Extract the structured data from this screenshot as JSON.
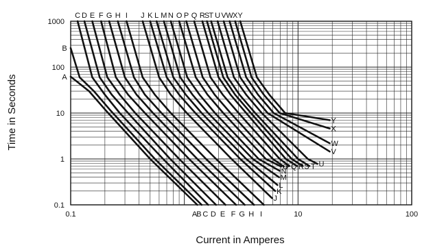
{
  "chart_data": {
    "type": "line",
    "xlabel": "Current in Amperes",
    "ylabel": "Time in Seconds",
    "xscale": "log",
    "yscale": "log",
    "xlim": [
      0.1,
      100
    ],
    "ylim": [
      0.1,
      1000
    ],
    "grid": true,
    "x_ticks": [
      {
        "value": 0.1,
        "label": "0.1"
      },
      {
        "value": 10,
        "label": "10"
      },
      {
        "value": 100,
        "label": "100"
      }
    ],
    "y_ticks": [
      {
        "value": 0.1,
        "label": "0.1"
      },
      {
        "value": 1,
        "label": "1"
      },
      {
        "value": 10,
        "label": "10"
      },
      {
        "value": 100,
        "label": "100"
      },
      {
        "value": 1000,
        "label": "1000"
      }
    ],
    "series": [
      {
        "name": "A",
        "points": [
          [
            0.1,
            62
          ],
          [
            0.145,
            30
          ],
          [
            0.2,
            12
          ],
          [
            0.5,
            1.0
          ],
          [
            1.3,
            0.1
          ]
        ]
      },
      {
        "name": "B",
        "points": [
          [
            0.1,
            260
          ],
          [
            0.12,
            60
          ],
          [
            0.16,
            30
          ],
          [
            0.22,
            12
          ],
          [
            0.55,
            1.0
          ],
          [
            1.42,
            0.1
          ]
        ]
      },
      {
        "name": "C",
        "points": [
          [
            0.115,
            1000
          ],
          [
            0.155,
            60
          ],
          [
            0.2,
            25
          ],
          [
            0.27,
            10
          ],
          [
            0.65,
            1.0
          ],
          [
            1.62,
            0.1
          ]
        ]
      },
      {
        "name": "D",
        "points": [
          [
            0.132,
            1000
          ],
          [
            0.18,
            60
          ],
          [
            0.23,
            25
          ],
          [
            0.32,
            10
          ],
          [
            0.75,
            1.0
          ],
          [
            1.9,
            0.1
          ]
        ]
      },
      {
        "name": "E",
        "points": [
          [
            0.155,
            1000
          ],
          [
            0.21,
            60
          ],
          [
            0.27,
            25
          ],
          [
            0.37,
            10
          ],
          [
            0.9,
            1.0
          ],
          [
            2.3,
            0.1
          ]
        ]
      },
      {
        "name": "F",
        "points": [
          [
            0.185,
            1000
          ],
          [
            0.25,
            60
          ],
          [
            0.32,
            25
          ],
          [
            0.45,
            10
          ],
          [
            1.1,
            1.0
          ],
          [
            2.85,
            0.1
          ]
        ]
      },
      {
        "name": "G",
        "points": [
          [
            0.218,
            1000
          ],
          [
            0.3,
            60
          ],
          [
            0.38,
            25
          ],
          [
            0.53,
            10
          ],
          [
            1.3,
            1.0
          ],
          [
            3.4,
            0.1
          ]
        ]
      },
      {
        "name": "H",
        "points": [
          [
            0.26,
            1000
          ],
          [
            0.36,
            60
          ],
          [
            0.45,
            25
          ],
          [
            0.63,
            10
          ],
          [
            1.55,
            1.0
          ],
          [
            4.1,
            0.1
          ]
        ]
      },
      {
        "name": "I",
        "points": [
          [
            0.31,
            1000
          ],
          [
            0.43,
            60
          ],
          [
            0.55,
            25
          ],
          [
            0.76,
            10
          ],
          [
            1.9,
            1.0
          ],
          [
            5.0,
            0.1
          ]
        ]
      },
      {
        "name": "J",
        "points": [
          [
            0.43,
            1000
          ],
          [
            0.6,
            60
          ],
          [
            0.76,
            25
          ],
          [
            1.05,
            10
          ],
          [
            2.6,
            1.0
          ],
          [
            5.9,
            0.14
          ]
        ]
      },
      {
        "name": "K",
        "points": [
          [
            0.5,
            1000
          ],
          [
            0.7,
            60
          ],
          [
            0.9,
            25
          ],
          [
            1.25,
            10
          ],
          [
            3.1,
            1.0
          ],
          [
            6.3,
            0.2
          ]
        ]
      },
      {
        "name": "L",
        "points": [
          [
            0.57,
            1000
          ],
          [
            0.8,
            60
          ],
          [
            1.03,
            25
          ],
          [
            1.42,
            10
          ],
          [
            3.5,
            1.0
          ],
          [
            6.6,
            0.27
          ]
        ]
      },
      {
        "name": "M",
        "points": [
          [
            0.66,
            1000
          ],
          [
            0.92,
            60
          ],
          [
            1.18,
            25
          ],
          [
            1.62,
            10
          ],
          [
            4.0,
            1.0
          ],
          [
            6.8,
            0.4
          ]
        ]
      },
      {
        "name": "N",
        "points": [
          [
            0.76,
            1000
          ],
          [
            1.06,
            60
          ],
          [
            1.36,
            25
          ],
          [
            1.86,
            10
          ],
          [
            4.5,
            1.0
          ],
          [
            6.9,
            0.55
          ]
        ]
      },
      {
        "name": "O",
        "points": [
          [
            0.9,
            1000
          ],
          [
            1.26,
            60
          ],
          [
            1.6,
            25
          ],
          [
            2.2,
            10
          ],
          [
            5.2,
            1.0
          ],
          [
            7.1,
            0.68
          ]
        ]
      },
      {
        "name": "P",
        "points": [
          [
            1.04,
            1000
          ],
          [
            1.45,
            60
          ],
          [
            1.85,
            25
          ],
          [
            2.55,
            10
          ],
          [
            6.0,
            1.0
          ],
          [
            7.5,
            0.68
          ]
        ]
      },
      {
        "name": "Q",
        "points": [
          [
            1.22,
            1000
          ],
          [
            1.7,
            60
          ],
          [
            2.18,
            25
          ],
          [
            3.0,
            10
          ],
          [
            6.9,
            1.0
          ],
          [
            8.4,
            0.7
          ]
        ]
      },
      {
        "name": "R",
        "points": [
          [
            1.44,
            1000
          ],
          [
            2.0,
            60
          ],
          [
            2.55,
            25
          ],
          [
            3.5,
            10
          ],
          [
            7.8,
            1.0
          ],
          [
            9.8,
            0.7
          ]
        ]
      },
      {
        "name": "S",
        "points": [
          [
            1.58,
            1000
          ],
          [
            2.2,
            60
          ],
          [
            2.8,
            25
          ],
          [
            3.85,
            10
          ],
          [
            8.8,
            1.0
          ],
          [
            11.0,
            0.7
          ]
        ]
      },
      {
        "name": "T",
        "points": [
          [
            1.72,
            1000
          ],
          [
            2.4,
            60
          ],
          [
            3.06,
            25
          ],
          [
            4.2,
            10
          ],
          [
            10.0,
            1.0
          ],
          [
            12.6,
            0.7
          ]
        ]
      },
      {
        "name": "U",
        "points": [
          [
            1.96,
            1000
          ],
          [
            2.73,
            60
          ],
          [
            3.5,
            25
          ],
          [
            4.8,
            10
          ],
          [
            12.2,
            1.0
          ],
          [
            14.8,
            0.78
          ]
        ]
      },
      {
        "name": "V",
        "points": [
          [
            2.22,
            1000
          ],
          [
            3.1,
            60
          ],
          [
            3.95,
            25
          ],
          [
            5.4,
            10
          ],
          [
            19.0,
            1.45
          ]
        ]
      },
      {
        "name": "W",
        "points": [
          [
            2.5,
            1000
          ],
          [
            3.5,
            60
          ],
          [
            4.45,
            25
          ],
          [
            6.1,
            10
          ],
          [
            19.0,
            2.2
          ]
        ]
      },
      {
        "name": "X",
        "points": [
          [
            2.8,
            1000
          ],
          [
            3.9,
            60
          ],
          [
            5.0,
            25
          ],
          [
            6.9,
            10
          ],
          [
            19.0,
            4.6
          ]
        ]
      },
      {
        "name": "Y",
        "points": [
          [
            3.1,
            1000
          ],
          [
            4.35,
            60
          ],
          [
            5.6,
            25
          ],
          [
            7.7,
            10
          ],
          [
            19.0,
            7.0
          ]
        ]
      }
    ]
  }
}
